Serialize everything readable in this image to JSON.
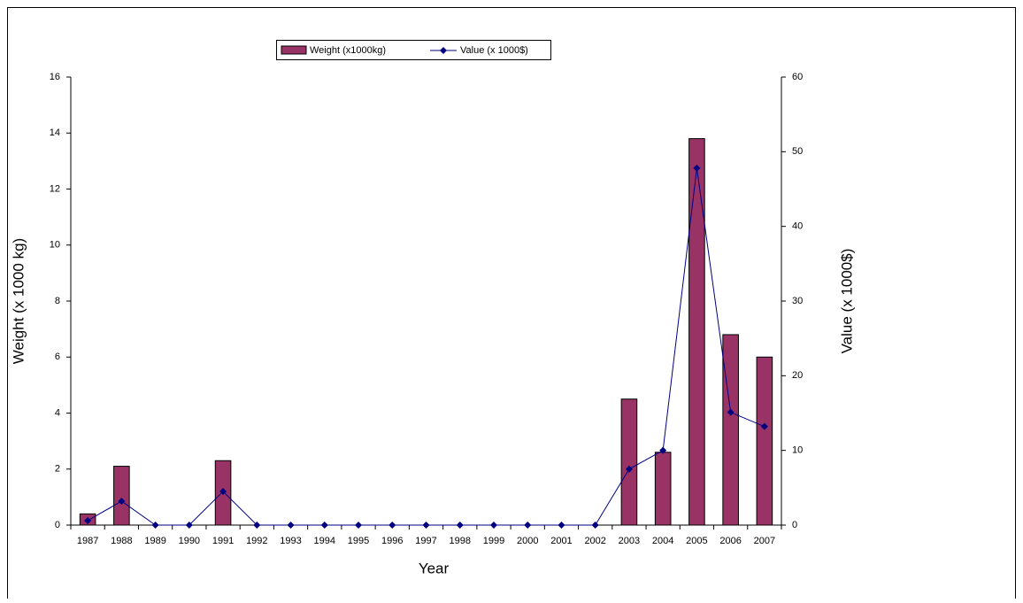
{
  "chart_data": {
    "type": "bar",
    "categories": [
      "1987",
      "1988",
      "1989",
      "1990",
      "1991",
      "1992",
      "1993",
      "1994",
      "1995",
      "1996",
      "1997",
      "1998",
      "1999",
      "2000",
      "2001",
      "2002",
      "2003",
      "2004",
      "2005",
      "2006",
      "2007"
    ],
    "series": [
      {
        "name": "Weight (x1000kg)",
        "type": "bar",
        "color": "#993366",
        "values": [
          0.4,
          2.1,
          0,
          0,
          2.3,
          0,
          0,
          0,
          0,
          0,
          0,
          0,
          0,
          0,
          0,
          0,
          4.5,
          2.6,
          13.8,
          6.8,
          6.0
        ]
      },
      {
        "name": "Value (x 1000$)",
        "type": "line",
        "axis": "y2",
        "color": "#000080",
        "values": [
          0.6,
          3.2,
          0,
          0,
          4.5,
          0,
          0,
          0,
          0,
          0,
          0,
          0,
          0,
          0,
          0,
          0,
          7.5,
          10.0,
          47.8,
          15.1,
          13.2
        ]
      }
    ],
    "xlabel": "Year",
    "ylabel": "Weight (x 1000 kg)",
    "y2label": "Value (x 1000$)",
    "ylim": [
      0,
      16
    ],
    "yticks": [
      0,
      2,
      4,
      6,
      8,
      10,
      12,
      14,
      16
    ],
    "y2lim": [
      0,
      60
    ],
    "y2ticks": [
      0,
      10,
      20,
      30,
      40,
      50,
      60
    ],
    "legend": "top"
  }
}
